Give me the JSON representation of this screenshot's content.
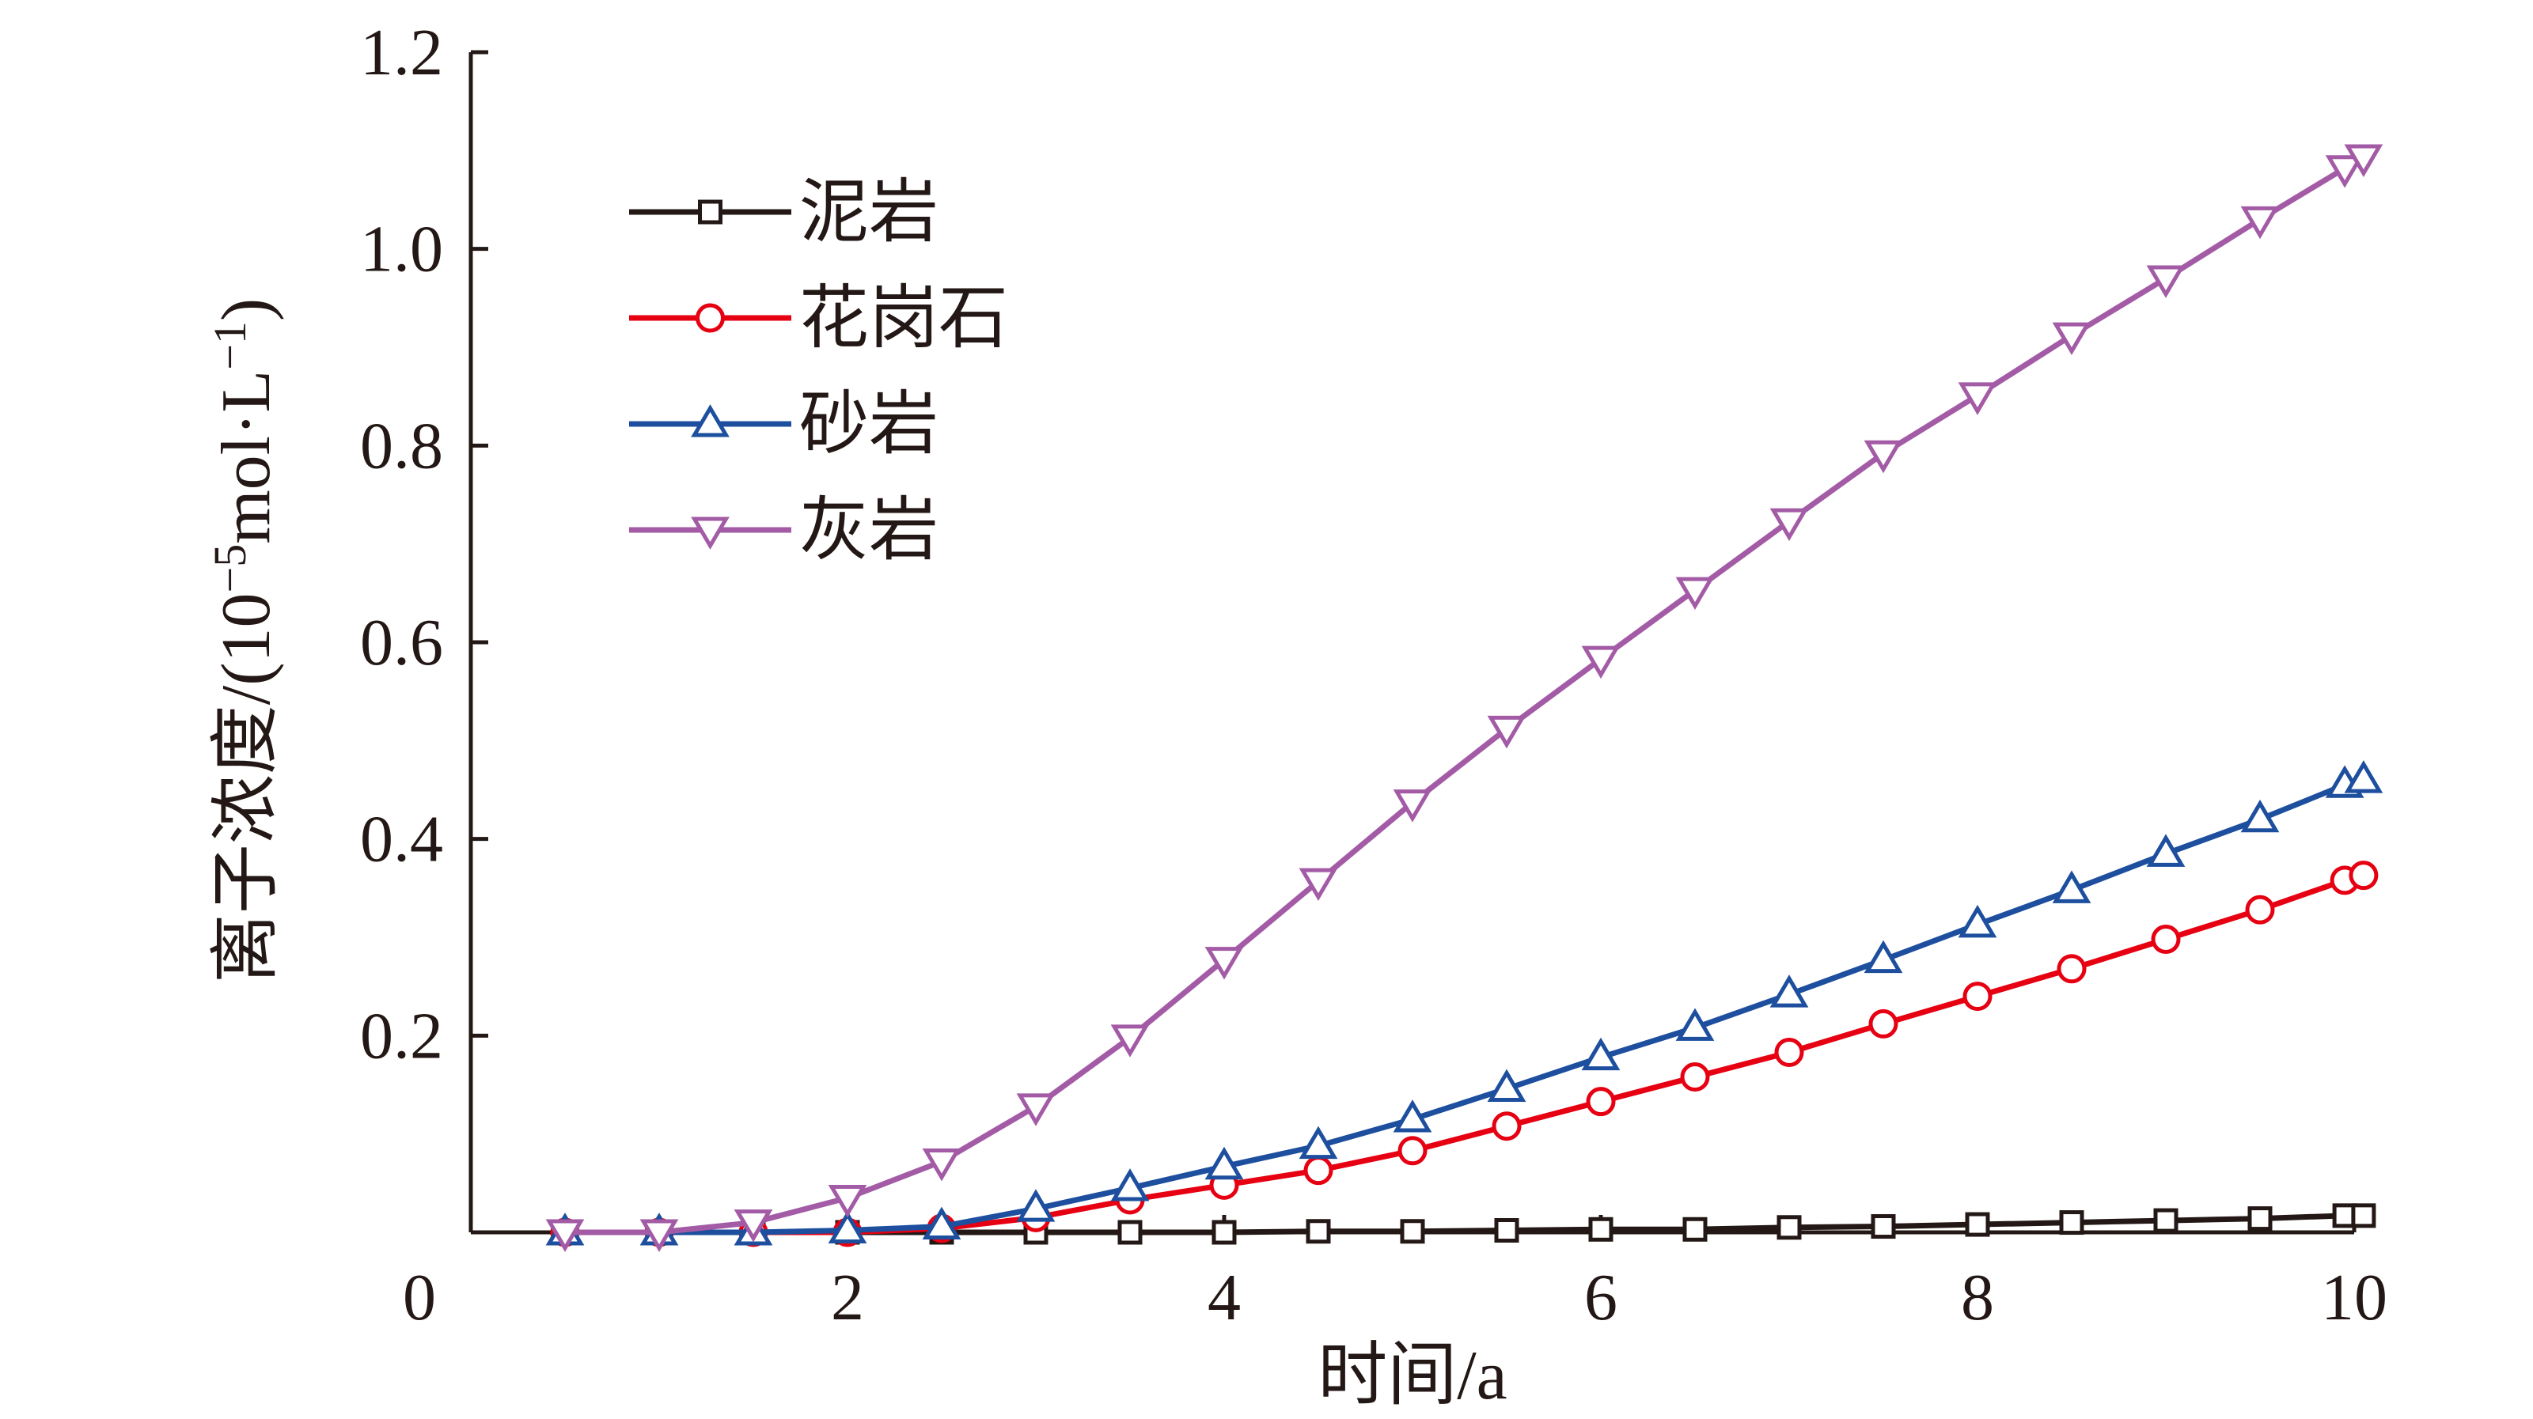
{
  "chart_data": {
    "type": "line",
    "xlabel": "时间/a",
    "ylabel_main": "离子浓度/(10",
    "ylabel_exp1": "−5",
    "ylabel_mid": "mol·L",
    "ylabel_exp2": "−1",
    "ylabel_end": ")",
    "xlim": [
      0,
      10
    ],
    "ylim": [
      0,
      1.2
    ],
    "x_tick_labels": [
      "0",
      "2",
      "4",
      "6",
      "8",
      "10"
    ],
    "x_ticks": [
      0,
      2,
      4,
      6,
      8,
      10
    ],
    "y_tick_labels": [
      "0.2",
      "0.4",
      "0.6",
      "0.8",
      "1.0",
      "1.2"
    ],
    "y_ticks": [
      0.2,
      0.4,
      0.6,
      0.8,
      1.0,
      1.2
    ],
    "grid": false,
    "legend_position": "top-left",
    "series": [
      {
        "name": "泥岩",
        "color": "#231815",
        "marker": "square",
        "x": [
          0.5,
          1.0,
          1.5,
          2.0,
          2.5,
          3.0,
          3.5,
          4.0,
          4.5,
          5.0,
          5.5,
          6.0,
          6.5,
          7.0,
          7.5,
          8.0,
          8.5,
          9.0,
          9.5,
          9.95,
          10.05
        ],
        "y": [
          0.0,
          0.0,
          0.0,
          0.0,
          0.0,
          0.0,
          0.0,
          0.0,
          0.001,
          0.001,
          0.002,
          0.003,
          0.003,
          0.005,
          0.006,
          0.008,
          0.01,
          0.012,
          0.014,
          0.017,
          0.017
        ]
      },
      {
        "name": "花岗石",
        "color": "#e60012",
        "marker": "circle",
        "x": [
          0.5,
          1.0,
          1.5,
          2.0,
          2.5,
          3.0,
          3.5,
          4.0,
          4.5,
          5.0,
          5.5,
          6.0,
          6.5,
          7.0,
          7.5,
          8.0,
          8.5,
          9.0,
          9.5,
          9.95,
          10.05
        ],
        "y": [
          0.0,
          0.0,
          0.0,
          0.0,
          0.004,
          0.015,
          0.033,
          0.048,
          0.063,
          0.083,
          0.108,
          0.133,
          0.158,
          0.183,
          0.212,
          0.24,
          0.268,
          0.298,
          0.328,
          0.358,
          0.363
        ]
      },
      {
        "name": "砂岩",
        "color": "#1d4f9e",
        "marker": "triangle-up",
        "x": [
          0.5,
          1.0,
          1.5,
          2.0,
          2.5,
          3.0,
          3.5,
          4.0,
          4.5,
          5.0,
          5.5,
          6.0,
          6.5,
          7.0,
          7.5,
          8.0,
          8.5,
          9.0,
          9.5,
          9.95,
          10.05
        ],
        "y": [
          0.0,
          0.0,
          0.0,
          0.002,
          0.006,
          0.024,
          0.045,
          0.067,
          0.088,
          0.115,
          0.146,
          0.178,
          0.208,
          0.242,
          0.277,
          0.313,
          0.348,
          0.385,
          0.42,
          0.455,
          0.46
        ]
      },
      {
        "name": "灰岩",
        "color": "#a35ba6",
        "marker": "triangle-down",
        "x": [
          0.5,
          1.0,
          1.5,
          2.0,
          2.5,
          3.0,
          3.5,
          4.0,
          4.5,
          5.0,
          5.5,
          6.0,
          6.5,
          7.0,
          7.5,
          8.0,
          8.5,
          9.0,
          9.5,
          9.95,
          10.05
        ],
        "y": [
          0.0,
          0.0,
          0.01,
          0.035,
          0.072,
          0.128,
          0.198,
          0.277,
          0.357,
          0.437,
          0.512,
          0.583,
          0.653,
          0.723,
          0.792,
          0.851,
          0.912,
          0.97,
          1.03,
          1.082,
          1.093
        ]
      }
    ]
  }
}
